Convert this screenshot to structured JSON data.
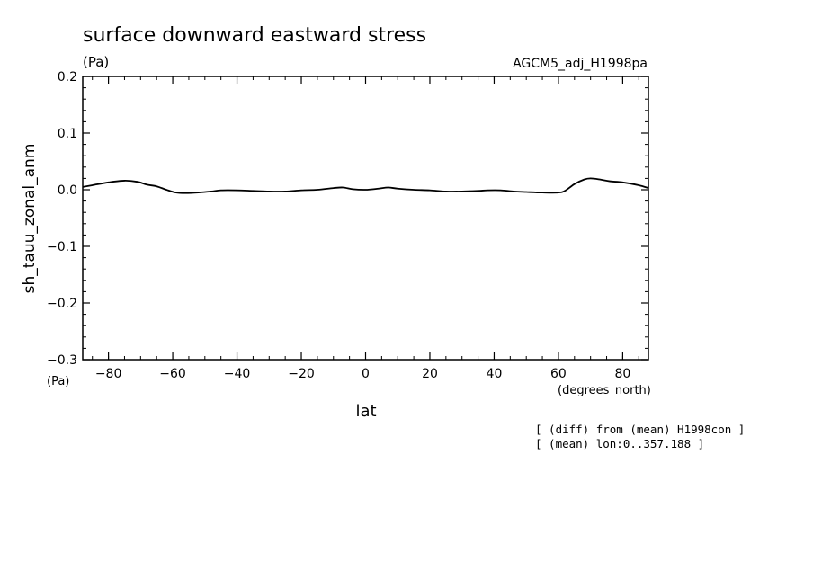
{
  "chart_data": {
    "type": "line",
    "title": "surface downward eastward stress",
    "title_units": "(Pa)",
    "dataset": "AGCM5_adj_H1998pa",
    "ylabel": "sh_tauu_zonal_anm",
    "ylabel_units": "(Pa)",
    "xlabel": "lat",
    "xlabel_units": "(degrees_north)",
    "xlim": [
      -88,
      88
    ],
    "ylim": [
      -0.3,
      0.2
    ],
    "x_ticks": [
      -80,
      -60,
      -40,
      -20,
      0,
      20,
      40,
      60,
      80
    ],
    "x_tick_labels": [
      "−80",
      "−60",
      "−40",
      "−20",
      "0",
      "20",
      "40",
      "60",
      "80"
    ],
    "y_ticks": [
      0.2,
      0.1,
      0.0,
      -0.1,
      -0.2,
      -0.3
    ],
    "y_tick_labels": [
      "0.2",
      "0.1",
      "0.0",
      "−0.1",
      "−0.2",
      "−0.3"
    ],
    "x_minor_step": 5,
    "y_minor_step": 0.02,
    "grid": false,
    "series": [
      {
        "color": "#000000",
        "x": [
          -88,
          -85,
          -80,
          -75,
          -71,
          -68,
          -65,
          -62,
          -59,
          -56,
          -52,
          -48,
          -45,
          -40,
          -35,
          -30,
          -25,
          -20,
          -15,
          -10,
          -7,
          -4,
          0,
          4,
          7,
          10,
          15,
          20,
          25,
          30,
          35,
          38,
          42,
          46,
          50,
          55,
          60,
          62,
          65,
          68,
          70,
          73,
          76,
          80,
          85,
          88
        ],
        "y": [
          0.005,
          0.008,
          0.013,
          0.016,
          0.014,
          0.009,
          0.006,
          0.0,
          -0.005,
          -0.006,
          -0.005,
          -0.003,
          -0.001,
          -0.001,
          -0.002,
          -0.003,
          -0.003,
          -0.001,
          0.0,
          0.003,
          0.004,
          0.001,
          0.0,
          0.002,
          0.004,
          0.002,
          0.0,
          -0.001,
          -0.003,
          -0.003,
          -0.002,
          -0.001,
          -0.001,
          -0.003,
          -0.004,
          -0.005,
          -0.005,
          -0.002,
          0.01,
          0.018,
          0.02,
          0.018,
          0.015,
          0.013,
          0.008,
          0.003
        ]
      }
    ]
  },
  "annotations": {
    "line1": "[ (diff) from (mean) H1998con ]",
    "line2": "[ (mean) lon:0..357.188 ]"
  }
}
